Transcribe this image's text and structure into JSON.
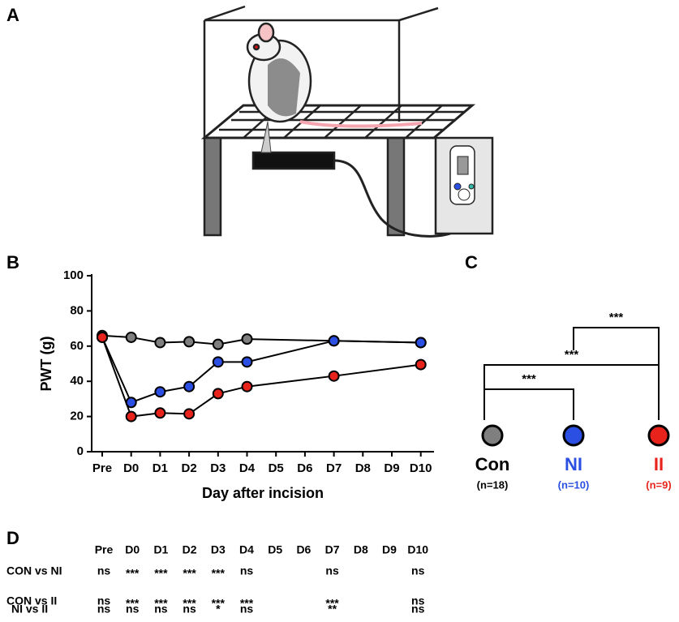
{
  "panel_labels": [
    "A",
    "B",
    "C",
    "D"
  ],
  "chart_data": {
    "type": "line",
    "ylabel": "PWT (g)",
    "xlabel": "Day after incision",
    "categories": [
      "Pre",
      "D0",
      "D1",
      "D2",
      "D3",
      "D4",
      "D5",
      "D6",
      "D7",
      "D8",
      "D9",
      "D10"
    ],
    "series": [
      {
        "name": "Con",
        "color": "#7f7f7f",
        "values": [
          66,
          65,
          62,
          62.5,
          61,
          64,
          null,
          null,
          63,
          null,
          null,
          62
        ]
      },
      {
        "name": "NI",
        "color": "#2b4fe3",
        "values": [
          65,
          28,
          34,
          37,
          51,
          51,
          null,
          null,
          63,
          null,
          null,
          62
        ]
      },
      {
        "name": "II",
        "color": "#e8231c",
        "values": [
          65,
          20,
          22,
          21.5,
          33,
          37,
          null,
          null,
          43,
          null,
          null,
          49.5
        ]
      }
    ],
    "connect_gaps": true,
    "ylim": [
      0,
      100
    ],
    "yticks": [
      0,
      20,
      40,
      60,
      80,
      100
    ]
  },
  "comparison": {
    "groups": [
      {
        "name": "Con",
        "n": "(n=18)",
        "color": "#7f7f7f",
        "text_color": "#000000"
      },
      {
        "name": "NI",
        "n": "(n=10)",
        "color": "#2b4fe3",
        "text_color": "#2b4fe3"
      },
      {
        "name": "II",
        "n": "(n=9)",
        "color": "#e8231c",
        "text_color": "#e8231c"
      }
    ],
    "brackets": [
      {
        "from": 0,
        "to": 1,
        "label": "***"
      },
      {
        "from": 0,
        "to": 2,
        "label": "***"
      },
      {
        "from": 1,
        "to": 2,
        "label": "***"
      }
    ]
  },
  "table": {
    "columns": [
      "Pre",
      "D0",
      "D1",
      "D2",
      "D3",
      "D4",
      "D5",
      "D6",
      "D7",
      "D8",
      "D9",
      "D10"
    ],
    "rows": [
      {
        "label": "CON vs NI",
        "cells": [
          "ns",
          "***",
          "***",
          "***",
          "***",
          "ns",
          null,
          null,
          "ns",
          null,
          null,
          "ns"
        ]
      },
      {
        "label": "CON vs II",
        "cells": [
          "ns",
          "***",
          "***",
          "***",
          "***",
          "***",
          null,
          null,
          "***",
          null,
          null,
          "ns"
        ]
      },
      {
        "label": "NI vs II",
        "cells": [
          "ns",
          "ns",
          "ns",
          "ns",
          "*",
          "ns",
          null,
          null,
          "**",
          null,
          null,
          "ns"
        ]
      }
    ]
  }
}
